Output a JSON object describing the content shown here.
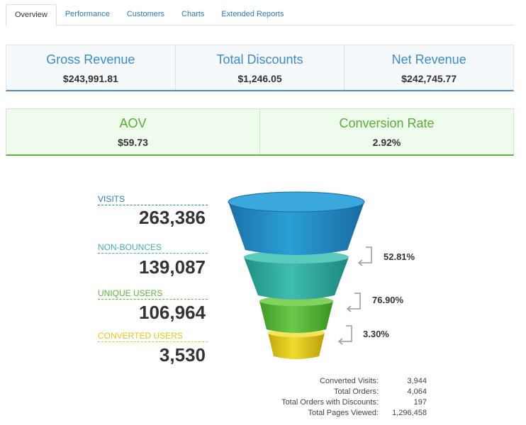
{
  "tabs": [
    {
      "label": "Overview",
      "active": true
    },
    {
      "label": "Performance",
      "active": false
    },
    {
      "label": "Customers",
      "active": false
    },
    {
      "label": "Charts",
      "active": false
    },
    {
      "label": "Extended Reports",
      "active": false
    }
  ],
  "row1": [
    {
      "label": "Gross Revenue",
      "value": "$243,991.81"
    },
    {
      "label": "Total Discounts",
      "value": "$1,246.05"
    },
    {
      "label": "Net Revenue",
      "value": "$242,745.77"
    }
  ],
  "row2": [
    {
      "label": "AOV",
      "value": "$59.73"
    },
    {
      "label": "Conversion Rate",
      "value": "2.92%"
    }
  ],
  "funnel": {
    "stages": [
      {
        "label": "VISITS",
        "value": "263,386",
        "color": "#2a7ab8"
      },
      {
        "label": "NON-BOUNCES",
        "value": "139,087",
        "color": "#3fb3a3"
      },
      {
        "label": "UNIQUE USERS",
        "value": "106,964",
        "color": "#5cb23c"
      },
      {
        "label": "CONVERTED USERS",
        "value": "3,530",
        "color": "#e2c81a"
      }
    ],
    "rates": [
      "52.81%",
      "76.90%",
      "3.30%"
    ]
  },
  "summary": [
    {
      "label": "Converted Visits:",
      "value": "3,944"
    },
    {
      "label": "Total Orders:",
      "value": "4,064"
    },
    {
      "label": "Total Orders with Discounts:",
      "value": "197"
    },
    {
      "label": "Total Pages Viewed:",
      "value": "1,296,458"
    }
  ]
}
